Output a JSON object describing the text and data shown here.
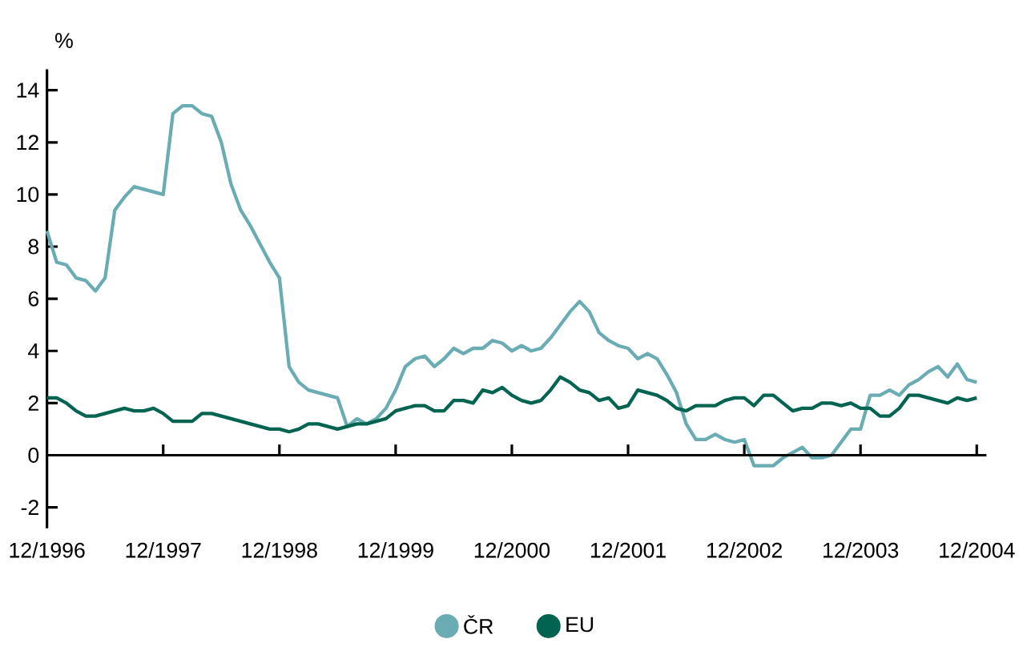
{
  "chart_data": {
    "type": "line",
    "ylabel": "%",
    "x": [
      "1996-12",
      "1997-01",
      "1997-02",
      "1997-03",
      "1997-04",
      "1997-05",
      "1997-06",
      "1997-07",
      "1997-08",
      "1997-09",
      "1997-10",
      "1997-11",
      "1997-12",
      "1998-01",
      "1998-02",
      "1998-03",
      "1998-04",
      "1998-05",
      "1998-06",
      "1998-07",
      "1998-08",
      "1998-09",
      "1998-10",
      "1998-11",
      "1998-12",
      "1999-01",
      "1999-02",
      "1999-03",
      "1999-04",
      "1999-05",
      "1999-06",
      "1999-07",
      "1999-08",
      "1999-09",
      "1999-10",
      "1999-11",
      "1999-12",
      "2000-01",
      "2000-02",
      "2000-03",
      "2000-04",
      "2000-05",
      "2000-06",
      "2000-07",
      "2000-08",
      "2000-09",
      "2000-10",
      "2000-11",
      "2000-12",
      "2001-01",
      "2001-02",
      "2001-03",
      "2001-04",
      "2001-05",
      "2001-06",
      "2001-07",
      "2001-08",
      "2001-09",
      "2001-10",
      "2001-11",
      "2001-12",
      "2002-01",
      "2002-02",
      "2002-03",
      "2002-04",
      "2002-05",
      "2002-06",
      "2002-07",
      "2002-08",
      "2002-09",
      "2002-10",
      "2002-11",
      "2002-12",
      "2003-01",
      "2003-02",
      "2003-03",
      "2003-04",
      "2003-05",
      "2003-06",
      "2003-07",
      "2003-08",
      "2003-09",
      "2003-10",
      "2003-11",
      "2003-12",
      "2004-01",
      "2004-02",
      "2004-03",
      "2004-04",
      "2004-05",
      "2004-06",
      "2004-07",
      "2004-08",
      "2004-09",
      "2004-10",
      "2004-11",
      "2004-12"
    ],
    "series": [
      {
        "name": "ČR",
        "color": "#6aacb4",
        "values": [
          8.6,
          7.4,
          7.3,
          6.8,
          6.7,
          6.3,
          6.8,
          9.4,
          9.9,
          10.3,
          10.2,
          10.1,
          10.0,
          13.1,
          13.4,
          13.4,
          13.1,
          13.0,
          12.0,
          10.4,
          9.4,
          8.8,
          8.1,
          7.4,
          6.8,
          3.4,
          2.8,
          2.5,
          2.4,
          2.3,
          2.2,
          1.1,
          1.4,
          1.2,
          1.4,
          1.8,
          2.5,
          3.4,
          3.7,
          3.8,
          3.4,
          3.7,
          4.1,
          3.9,
          4.1,
          4.1,
          4.4,
          4.3,
          4.0,
          4.2,
          4.0,
          4.1,
          4.5,
          5.0,
          5.5,
          5.9,
          5.5,
          4.7,
          4.4,
          4.2,
          4.1,
          3.7,
          3.9,
          3.7,
          3.1,
          2.4,
          1.2,
          0.6,
          0.6,
          0.8,
          0.6,
          0.5,
          0.6,
          -0.4,
          -0.4,
          -0.4,
          -0.1,
          0.1,
          0.3,
          -0.1,
          -0.1,
          0.0,
          0.5,
          1.0,
          1.0,
          2.3,
          2.3,
          2.5,
          2.3,
          2.7,
          2.9,
          3.2,
          3.4,
          3.0,
          3.5,
          2.9,
          2.8
        ]
      },
      {
        "name": "EU",
        "color": "#006450",
        "values": [
          2.2,
          2.2,
          2.0,
          1.7,
          1.5,
          1.5,
          1.6,
          1.7,
          1.8,
          1.7,
          1.7,
          1.8,
          1.6,
          1.3,
          1.3,
          1.3,
          1.6,
          1.6,
          1.5,
          1.4,
          1.3,
          1.2,
          1.1,
          1.0,
          1.0,
          0.9,
          1.0,
          1.2,
          1.2,
          1.1,
          1.0,
          1.1,
          1.2,
          1.2,
          1.3,
          1.4,
          1.7,
          1.8,
          1.9,
          1.9,
          1.7,
          1.7,
          2.1,
          2.1,
          2.0,
          2.5,
          2.4,
          2.6,
          2.3,
          2.1,
          2.0,
          2.1,
          2.5,
          3.0,
          2.8,
          2.5,
          2.4,
          2.1,
          2.2,
          1.8,
          1.9,
          2.5,
          2.4,
          2.3,
          2.1,
          1.8,
          1.7,
          1.9,
          1.9,
          1.9,
          2.1,
          2.2,
          2.2,
          1.9,
          2.3,
          2.3,
          2.0,
          1.7,
          1.8,
          1.8,
          2.0,
          2.0,
          1.9,
          2.0,
          1.8,
          1.8,
          1.5,
          1.5,
          1.8,
          2.3,
          2.3,
          2.2,
          2.1,
          2.0,
          2.2,
          2.1,
          2.2
        ]
      }
    ],
    "xlim": [
      "1996-12",
      "2005-01"
    ],
    "xticks": [
      {
        "value": "1996-12",
        "label": "12/1996"
      },
      {
        "value": "1997-12",
        "label": "12/1997"
      },
      {
        "value": "1998-12",
        "label": "12/1998"
      },
      {
        "value": "1999-12",
        "label": "12/1999"
      },
      {
        "value": "2000-12",
        "label": "12/2000"
      },
      {
        "value": "2001-12",
        "label": "12/2001"
      },
      {
        "value": "2002-12",
        "label": "12/2002"
      },
      {
        "value": "2003-12",
        "label": "12/2003"
      },
      {
        "value": "2004-12",
        "label": "12/2004"
      }
    ],
    "ylim": [
      -2.8,
      14.8
    ],
    "yticks": [
      -2,
      0,
      2,
      4,
      6,
      8,
      10,
      12,
      14
    ],
    "legend": "bottom",
    "marker": "none",
    "line_style": "solid"
  }
}
